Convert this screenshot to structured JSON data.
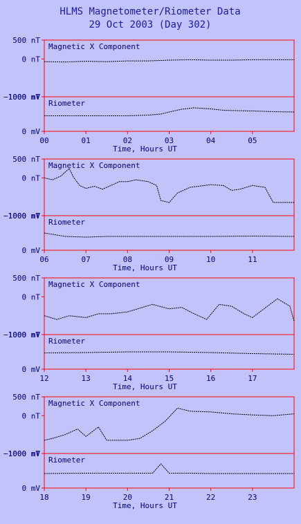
{
  "chart_data": {
    "type": "line",
    "title": "HLMS Magnetometer/Riometer Data",
    "subtitle": "29 Oct 2003 (Day 302)",
    "xlabel": "Time, Hours UT",
    "magnetometer": {
      "panel_label": "Magnetic X Component",
      "units": "nT",
      "ylim": [
        -1000,
        500
      ],
      "yticks": [
        {
          "value": 500,
          "label": "500 nT"
        },
        {
          "value": 0,
          "label": "0 nT"
        },
        {
          "value": -1000,
          "label": "−1000 nT"
        }
      ]
    },
    "riometer": {
      "panel_label": "Riometer",
      "units": "mV",
      "ylim": [
        0,
        1000
      ],
      "yticks": [
        {
          "value": 1000,
          "label": "1000 mV"
        },
        {
          "value": 0,
          "label": "0 mV"
        }
      ]
    },
    "segments": [
      {
        "x_ticks": [
          "00",
          "01",
          "02",
          "03",
          "04",
          "05"
        ],
        "hours": [
          0,
          6
        ],
        "mag_series": {
          "x": [
            0,
            0.5,
            1,
            1.5,
            2,
            2.5,
            3,
            3.5,
            4,
            4.5,
            5,
            5.5,
            6
          ],
          "y": [
            -70,
            -80,
            -60,
            -70,
            -50,
            -50,
            -30,
            -20,
            -30,
            -30,
            -20,
            -20,
            -20
          ]
        },
        "rio_series": {
          "x": [
            0,
            0.5,
            1,
            1.5,
            2,
            2.5,
            2.8,
            3,
            3.3,
            3.6,
            4,
            4.3,
            4.6,
            5,
            5.5,
            6
          ],
          "y": [
            450,
            450,
            450,
            450,
            450,
            470,
            500,
            560,
            640,
            680,
            650,
            610,
            600,
            590,
            570,
            560
          ]
        }
      },
      {
        "x_ticks": [
          "06",
          "07",
          "08",
          "09",
          "10",
          "11"
        ],
        "hours": [
          6,
          12
        ],
        "mag_series": {
          "x": [
            6,
            6.2,
            6.4,
            6.6,
            6.7,
            6.85,
            7,
            7.2,
            7.4,
            7.6,
            7.8,
            8,
            8.2,
            8.5,
            8.7,
            8.8,
            9,
            9.2,
            9.5,
            10,
            10.3,
            10.5,
            10.7,
            11,
            11.3,
            11.5,
            11.7,
            12
          ],
          "y": [
            0,
            -50,
            50,
            250,
            20,
            -200,
            -280,
            -220,
            -300,
            -200,
            -100,
            -100,
            -50,
            -100,
            -200,
            -600,
            -650,
            -400,
            -250,
            -180,
            -200,
            -330,
            -300,
            -200,
            -250,
            -650,
            -650,
            -650
          ]
        },
        "rio_series": {
          "x": [
            6,
            6.5,
            7,
            7.5,
            8,
            9,
            10,
            11,
            12
          ],
          "y": [
            500,
            400,
            380,
            400,
            400,
            400,
            400,
            410,
            400
          ]
        }
      },
      {
        "x_ticks": [
          "12",
          "13",
          "14",
          "15",
          "16",
          "17"
        ],
        "hours": [
          12,
          18
        ],
        "mag_series": {
          "x": [
            12,
            12.3,
            12.6,
            13,
            13.3,
            13.6,
            14,
            14.3,
            14.6,
            15,
            15.3,
            15.6,
            15.9,
            16.2,
            16.5,
            16.8,
            17,
            17.3,
            17.6,
            17.9,
            18
          ],
          "y": [
            -500,
            -600,
            -500,
            -550,
            -450,
            -450,
            -400,
            -300,
            -200,
            -320,
            -280,
            -450,
            -600,
            -200,
            -250,
            -450,
            -550,
            -300,
            -50,
            -250,
            -650
          ]
        },
        "rio_series": {
          "x": [
            12,
            13,
            14,
            15,
            16,
            17,
            18
          ],
          "y": [
            470,
            480,
            500,
            500,
            480,
            450,
            430
          ]
        }
      },
      {
        "x_ticks": [
          "18",
          "19",
          "20",
          "21",
          "22",
          "23"
        ],
        "hours": [
          18,
          24
        ],
        "mag_series": {
          "x": [
            18,
            18.2,
            18.5,
            18.8,
            19,
            19.3,
            19.5,
            19.7,
            20,
            20.3,
            20.6,
            20.9,
            21.2,
            21.5,
            22,
            22.5,
            23,
            23.5,
            24
          ],
          "y": [
            -650,
            -600,
            -500,
            -350,
            -550,
            -300,
            -650,
            -650,
            -650,
            -600,
            -400,
            -150,
            200,
            120,
            100,
            50,
            20,
            0,
            50
          ]
        },
        "rio_series": {
          "x": [
            18,
            19,
            20,
            20.6,
            20.8,
            21,
            21.5,
            22,
            23,
            24
          ],
          "y": [
            420,
            430,
            430,
            430,
            700,
            430,
            430,
            420,
            420,
            420
          ]
        }
      }
    ]
  }
}
